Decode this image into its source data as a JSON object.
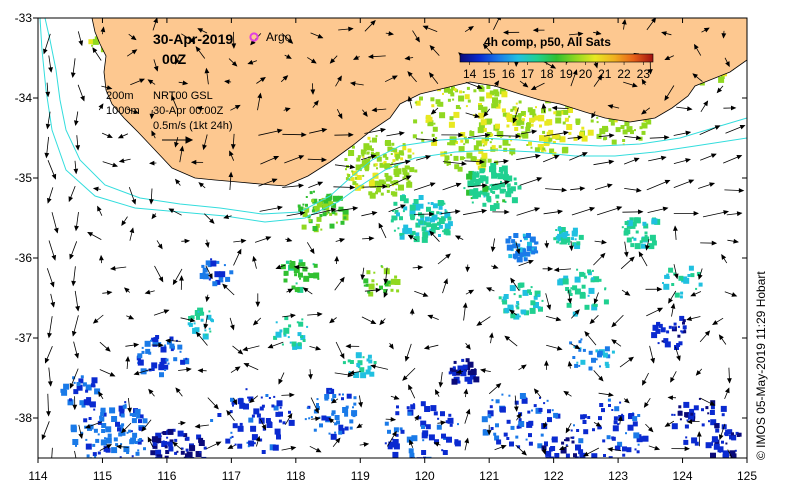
{
  "title": {
    "date": "30-Apr-2019",
    "time": "00Z"
  },
  "legend": {
    "argo_label": "Argo",
    "argo_color": "#e040e0",
    "isobaths": [
      "200m",
      "1000m"
    ],
    "isobath_color": "#33dddd",
    "source": "NRT00 GSL",
    "timestamp": "30-Apr 00:00Z",
    "vector_scale": "0.5m/s (1kt 24h)"
  },
  "colorbar": {
    "title": "4h comp, p50, All Sats",
    "ticks": [
      "14",
      "15",
      "16",
      "17",
      "18",
      "19",
      "20",
      "21",
      "22",
      "23"
    ],
    "min": 13.5,
    "max": 23.5,
    "colors": [
      "#0a0a7a",
      "#0a2ad0",
      "#1a7ae8",
      "#20c0e0",
      "#20d090",
      "#30c030",
      "#90d820",
      "#e8e820",
      "#f0b020",
      "#e86018",
      "#a01010"
    ]
  },
  "axes": {
    "lon_ticks": [
      "114",
      "115",
      "116",
      "117",
      "118",
      "119",
      "120",
      "121",
      "122",
      "123",
      "124",
      "125"
    ],
    "lat_ticks": [
      "-33",
      "-34",
      "-35",
      "-36",
      "-37",
      "-38"
    ],
    "lon_range": [
      114,
      125
    ],
    "lat_range": [
      -38.5,
      -33
    ]
  },
  "land_color": "#fdc890",
  "credit": "© IMOS 05-May-2019 11:29 Hobart"
}
